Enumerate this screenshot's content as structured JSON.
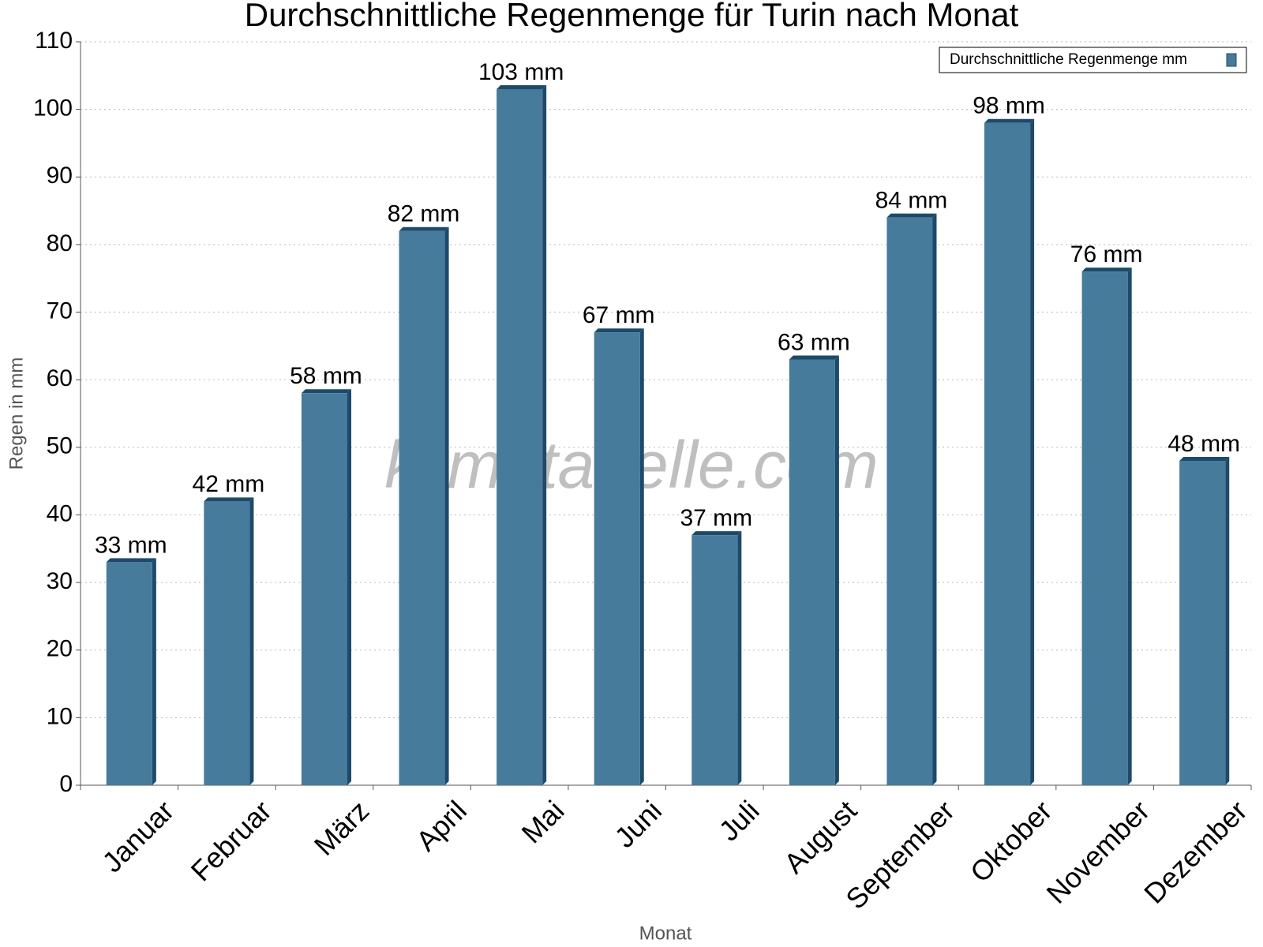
{
  "chart_data": {
    "type": "bar",
    "title": "Durchschnittliche Regenmenge für Turin nach Monat",
    "x_label": "Monat",
    "y_label": "Regen in mm",
    "watermark": "klimatabelle.com",
    "categories": [
      "Januar",
      "Februar",
      "März",
      "April",
      "Mai",
      "Juni",
      "Juli",
      "August",
      "September",
      "Oktober",
      "November",
      "Dezember"
    ],
    "series": [
      {
        "name": "Durchschnittliche Regenmenge mm",
        "color": "#467b9c",
        "values": [
          33,
          42,
          58,
          82,
          103,
          67,
          37,
          63,
          84,
          98,
          76,
          48
        ],
        "value_labels": [
          "33 mm",
          "42 mm",
          "58 mm",
          "82 mm",
          "103 mm",
          "67 mm",
          "37 mm",
          "63 mm",
          "84 mm",
          "98 mm",
          "76 mm",
          "48 mm"
        ]
      }
    ],
    "ylim": [
      0,
      110
    ],
    "yticks": [
      0,
      10,
      20,
      30,
      40,
      50,
      60,
      70,
      80,
      90,
      100,
      110
    ],
    "grid": true,
    "legend": "top-right"
  }
}
